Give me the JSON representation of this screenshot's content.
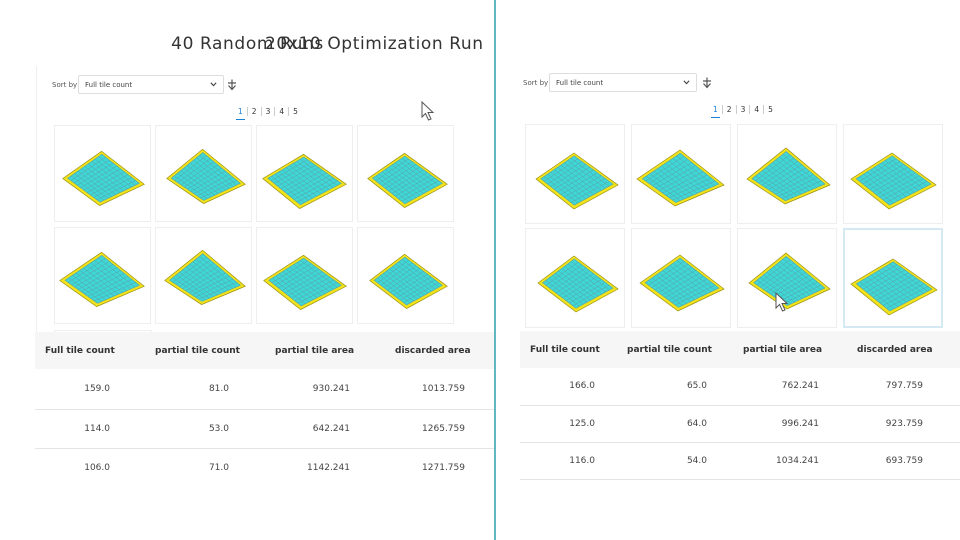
{
  "left": {
    "title": "40 Random Runs",
    "sort_label": "Sort by",
    "sort_value": "Full tile count",
    "sort_direction_icon": "arrow-down-icon",
    "pages": [
      "1",
      "2",
      "3",
      "4",
      "5"
    ],
    "active_page": "1",
    "thumbnail_count": 8,
    "table": {
      "headers": [
        "Full tile count",
        "partial tile count",
        "partial tile area",
        "discarded area"
      ],
      "rows": [
        [
          "159.0",
          "81.0",
          "930.241",
          "1013.759"
        ],
        [
          "114.0",
          "53.0",
          "642.241",
          "1265.759"
        ],
        [
          "106.0",
          "71.0",
          "1142.241",
          "1271.759"
        ]
      ]
    }
  },
  "right": {
    "title": "20x10 Optimization Run",
    "sort_label": "Sort by",
    "sort_value": "Full tile count",
    "sort_direction_icon": "arrow-down-icon",
    "pages": [
      "1",
      "2",
      "3",
      "4",
      "5"
    ],
    "active_page": "1",
    "thumbnail_count": 8,
    "selected_thumbnail": 7,
    "table": {
      "headers": [
        "Full tile count",
        "partial tile count",
        "partial tile area",
        "discarded area"
      ],
      "rows": [
        [
          "166.0",
          "65.0",
          "762.241",
          "797.759"
        ],
        [
          "125.0",
          "64.0",
          "996.241",
          "923.759"
        ],
        [
          "116.0",
          "54.0",
          "1034.241",
          "693.759"
        ]
      ]
    }
  },
  "colors": {
    "divider": "#5fb8bf",
    "tile_cyan": "#3fd6d6",
    "tile_yellow": "#f2e21a",
    "tile_outline": "#5aa0a8",
    "active_page": "#1a7fd6"
  }
}
